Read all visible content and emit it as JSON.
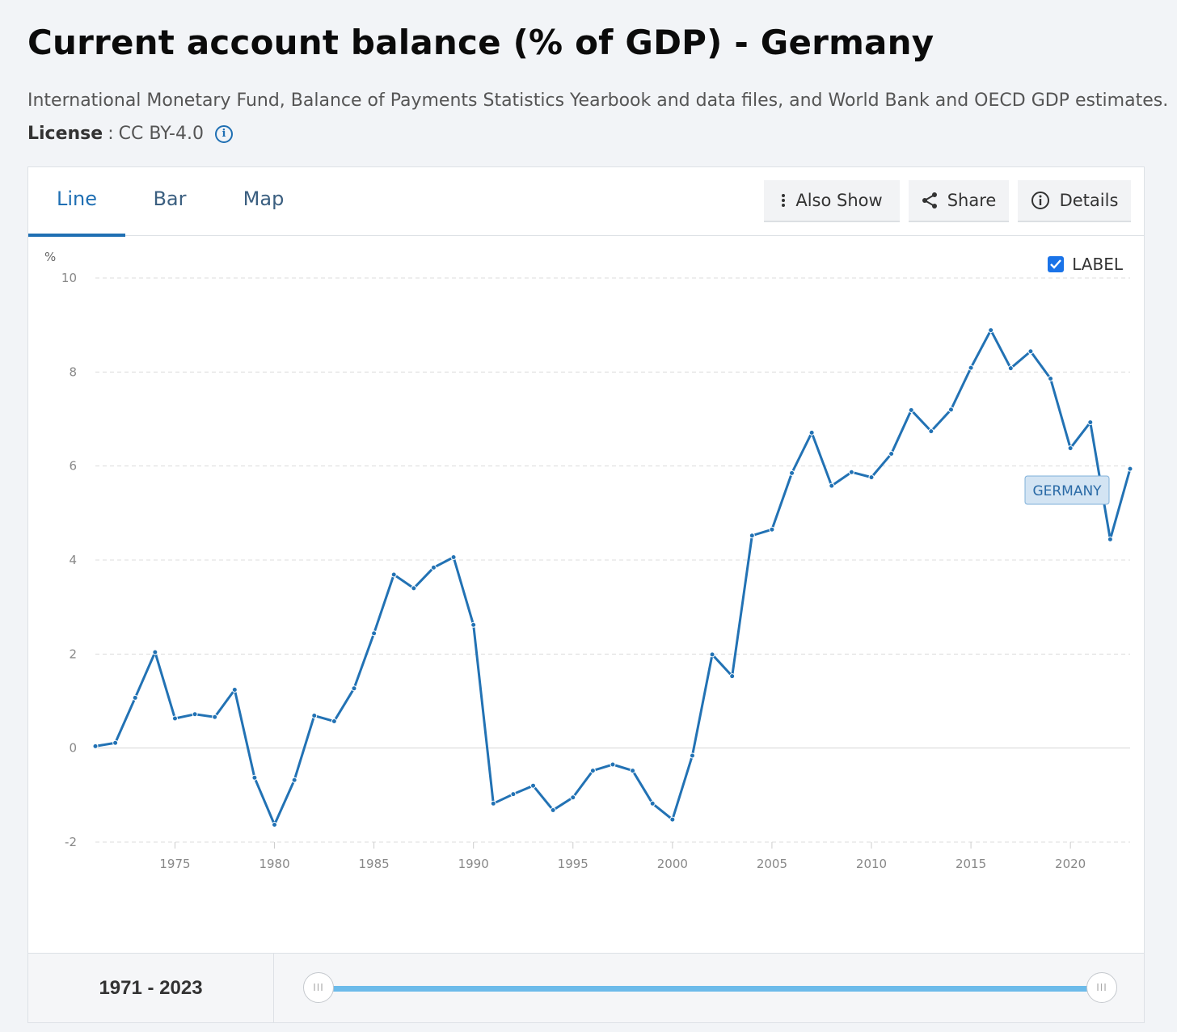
{
  "title": "Current account balance (% of GDP) - Germany",
  "source": "International Monetary Fund, Balance of Payments Statistics Yearbook and data files, and World Bank and OECD GDP estimates.",
  "license": {
    "label": "License",
    "separator": ":",
    "value": "CC BY-4.0"
  },
  "tabs": [
    {
      "label": "Line",
      "active": true
    },
    {
      "label": "Bar",
      "active": false
    },
    {
      "label": "Map",
      "active": false
    }
  ],
  "toolbar": {
    "also_show": "Also Show",
    "share": "Share",
    "details": "Details"
  },
  "label_toggle": {
    "text": "LABEL",
    "checked": true
  },
  "range": {
    "label": "1971 - 2023",
    "handle_glyph": "III"
  },
  "colors": {
    "line": "#2272b4",
    "accent": "#1f6fb3",
    "slider": "#6cbbea"
  },
  "chart_data": {
    "type": "line",
    "ylabel": "%",
    "ylim": [
      -2,
      10
    ],
    "yticks": [
      -2,
      0,
      2,
      4,
      6,
      8,
      10
    ],
    "xlim": [
      1971,
      2023
    ],
    "xticks": [
      1975,
      1980,
      1985,
      1990,
      1995,
      2000,
      2005,
      2010,
      2015,
      2020
    ],
    "grid": true,
    "series": [
      {
        "name": "GERMANY",
        "x": [
          1971,
          1972,
          1973,
          1974,
          1975,
          1976,
          1977,
          1978,
          1979,
          1980,
          1981,
          1982,
          1983,
          1984,
          1985,
          1986,
          1987,
          1988,
          1989,
          1990,
          1991,
          1992,
          1993,
          1994,
          1995,
          1996,
          1997,
          1998,
          1999,
          2000,
          2001,
          2002,
          2003,
          2004,
          2005,
          2006,
          2007,
          2008,
          2009,
          2010,
          2011,
          2012,
          2013,
          2014,
          2015,
          2016,
          2017,
          2018,
          2019,
          2020,
          2021,
          2022,
          2023
        ],
        "values": [
          0.04,
          0.11,
          1.07,
          2.04,
          0.63,
          0.72,
          0.66,
          1.24,
          -0.63,
          -1.63,
          -0.68,
          0.69,
          0.57,
          1.27,
          2.44,
          3.69,
          3.4,
          3.84,
          4.06,
          2.62,
          -1.18,
          -0.98,
          -0.8,
          -1.32,
          -1.05,
          -0.48,
          -0.35,
          -0.48,
          -1.18,
          -1.52,
          -0.16,
          1.99,
          1.53,
          4.52,
          4.65,
          5.85,
          6.71,
          5.58,
          5.87,
          5.76,
          6.26,
          7.19,
          6.74,
          7.2,
          8.09,
          8.89,
          8.08,
          8.44,
          7.86,
          6.38,
          6.93,
          4.44,
          5.94
        ]
      }
    ]
  }
}
